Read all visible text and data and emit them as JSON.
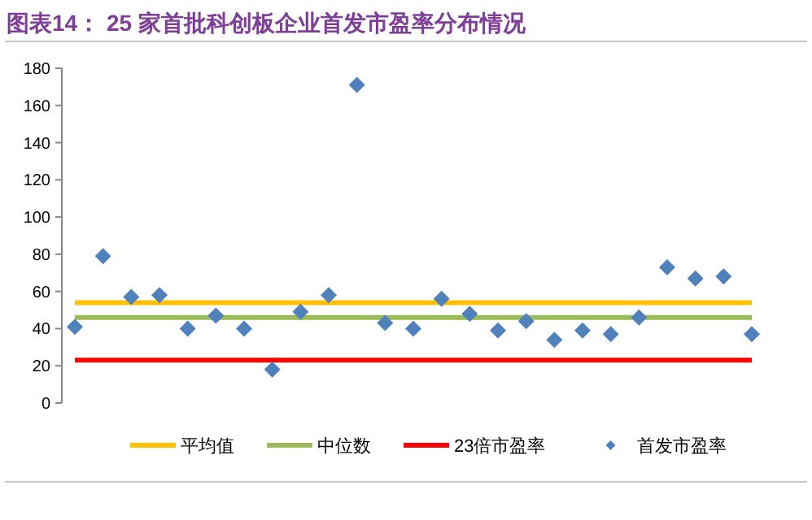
{
  "chart_data": {
    "type": "scatter",
    "title": "图表14：  25 家首批科创板企业首发市盈率分布情况",
    "categories": [
      null,
      null,
      null,
      null,
      null,
      null,
      null,
      null,
      null,
      null,
      null,
      null,
      null,
      null,
      null,
      null,
      null,
      null,
      null,
      null,
      null,
      null,
      null,
      null,
      null
    ],
    "series": [
      {
        "name": "平均值",
        "type": "line",
        "color": "#ffc000",
        "values": [
          54,
          54,
          54,
          54,
          54,
          54,
          54,
          54,
          54,
          54,
          54,
          54,
          54,
          54,
          54,
          54,
          54,
          54,
          54,
          54,
          54,
          54,
          54,
          54,
          54
        ]
      },
      {
        "name": "中位数",
        "type": "line",
        "color": "#9bbb59",
        "values": [
          46,
          46,
          46,
          46,
          46,
          46,
          46,
          46,
          46,
          46,
          46,
          46,
          46,
          46,
          46,
          46,
          46,
          46,
          46,
          46,
          46,
          46,
          46,
          46,
          46
        ]
      },
      {
        "name": "23倍市盈率",
        "type": "line",
        "color": "#ff0000",
        "values": [
          23,
          23,
          23,
          23,
          23,
          23,
          23,
          23,
          23,
          23,
          23,
          23,
          23,
          23,
          23,
          23,
          23,
          23,
          23,
          23,
          23,
          23,
          23,
          23,
          23
        ]
      },
      {
        "name": "首发市盈率",
        "color": "#4f81bd",
        "marker": "diamond",
        "values": [
          41,
          79,
          57,
          58,
          40,
          47,
          40,
          18,
          49,
          58,
          171,
          43,
          40,
          56,
          48,
          39,
          44,
          34,
          39,
          37,
          46,
          73,
          67,
          68,
          37
        ]
      }
    ],
    "ylim": [
      0,
      180
    ],
    "yticks": [
      0,
      20,
      40,
      60,
      80,
      100,
      120,
      140,
      160,
      180
    ],
    "legend": "bottom",
    "grid": false
  }
}
